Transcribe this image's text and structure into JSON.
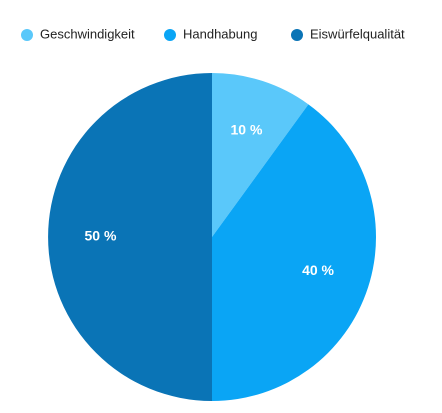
{
  "chart_data": {
    "type": "pie",
    "categories": [
      "Geschwindigkeit",
      "Handhabung",
      "Eiswürfelqualität"
    ],
    "values": [
      10,
      40,
      50
    ],
    "value_labels": [
      "10 %",
      "40 %",
      "50 %"
    ],
    "colors": [
      "#5ac8fa",
      "#0aa5f5",
      "#0a74b6"
    ],
    "legend": "top"
  }
}
